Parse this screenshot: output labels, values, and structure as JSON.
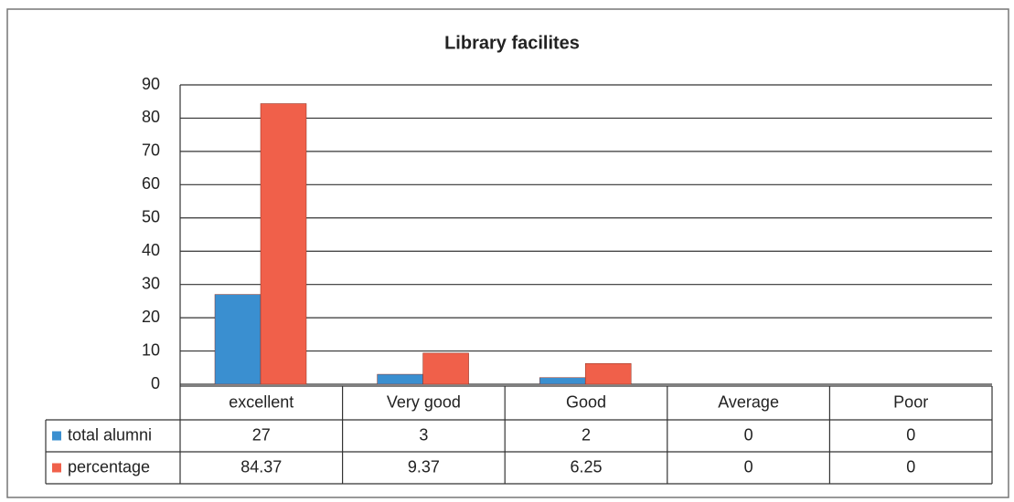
{
  "chart_data": {
    "type": "bar",
    "title": "Library facilites",
    "categories": [
      "excellent",
      "Very good",
      "Good",
      "Average",
      "Poor"
    ],
    "series": [
      {
        "name": "total alumni",
        "color": "#3a8fd0",
        "values": [
          27,
          3,
          2,
          0,
          0
        ]
      },
      {
        "name": "percentage",
        "color": "#f0604a",
        "values": [
          84.37,
          9.37,
          6.25,
          0,
          0
        ]
      }
    ],
    "ylim": [
      0,
      90
    ],
    "yticks": [
      0,
      10,
      20,
      30,
      40,
      50,
      60,
      70,
      80,
      90
    ],
    "grid": true,
    "data_table": true
  }
}
